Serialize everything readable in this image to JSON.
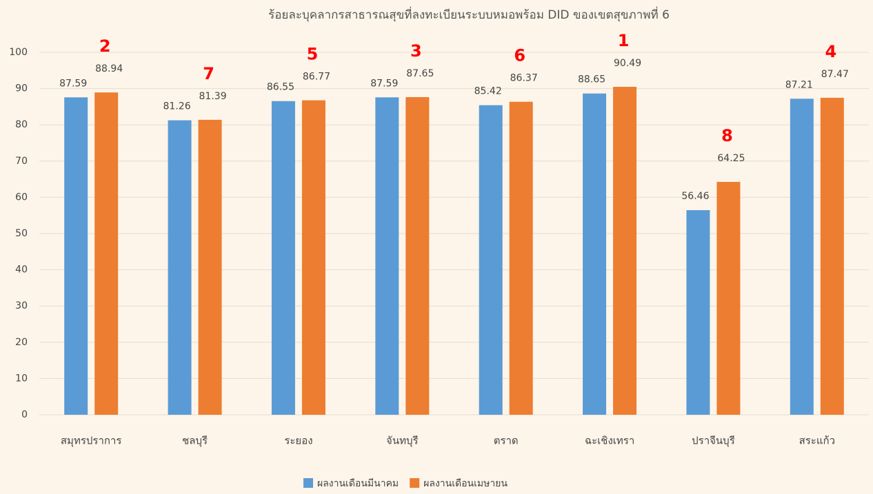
{
  "chart_data": {
    "type": "bar",
    "title": "ร้อยละบุคลากรสาธารณสุขที่ลงทะเบียนระบบหมอพร้อม DID ของเขตสุขภาพที่ 6",
    "categories": [
      "สมุทรปราการ",
      "ชลบุรี",
      "ระยอง",
      "จันทบุรี",
      "ตราด",
      "ฉะเชิงเทรา",
      "ปราจีนบุรี",
      "สระแก้ว"
    ],
    "series": [
      {
        "name": "ผลงานเดือนมีนาคม",
        "color": "#5b9bd5",
        "values": [
          87.59,
          81.26,
          86.55,
          87.59,
          85.42,
          88.65,
          56.46,
          87.21
        ]
      },
      {
        "name": "ผลงานเดือนเมษายน",
        "color": "#ed7d31",
        "values": [
          88.94,
          81.39,
          86.77,
          87.65,
          86.37,
          90.49,
          64.25,
          87.47
        ]
      }
    ],
    "rank_labels": [
      2,
      7,
      5,
      3,
      6,
      1,
      8,
      4
    ],
    "ylim": [
      0,
      100
    ],
    "yticks": [
      0,
      10,
      20,
      30,
      40,
      50,
      60,
      70,
      80,
      90,
      100
    ],
    "grid": true,
    "legend": "bottom"
  }
}
